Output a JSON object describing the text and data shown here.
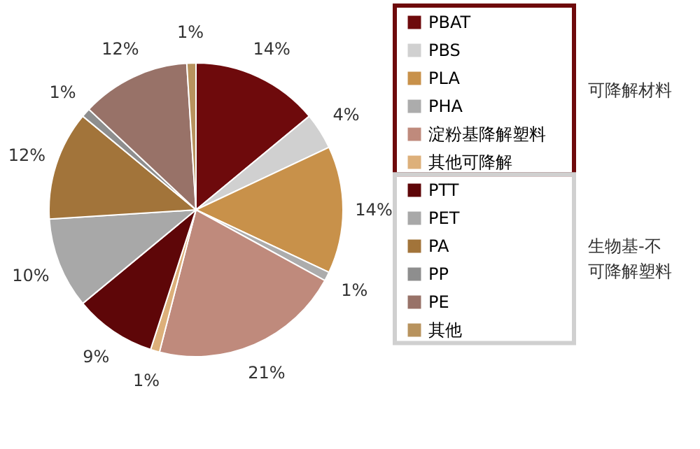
{
  "chart_data": {
    "type": "pie",
    "categories": [
      "PBAT",
      "PBS",
      "PLA",
      "PHA",
      "淀粉基降解塑料",
      "其他可降解",
      "PTT",
      "PET",
      "PA",
      "PP",
      "PE",
      "其他"
    ],
    "values": [
      14,
      4,
      14,
      1,
      21,
      1,
      9,
      10,
      12,
      1,
      12,
      1
    ],
    "value_labels": [
      "14%",
      "4%",
      "14%",
      "1%",
      "21%",
      "1%",
      "9%",
      "10%",
      "12%",
      "1%",
      "12%",
      "1%"
    ],
    "colors": [
      "#6e0a0c",
      "#d0d0d0",
      "#c8914a",
      "#acacac",
      "#bf8a7c",
      "#ddb07a",
      "#5e0608",
      "#a8a8a8",
      "#a2743a",
      "#8e8e8e",
      "#987268",
      "#b8935e"
    ],
    "legend": "right",
    "annotations": [
      "可降解材料",
      "生物基-不可降解塑料"
    ]
  }
}
